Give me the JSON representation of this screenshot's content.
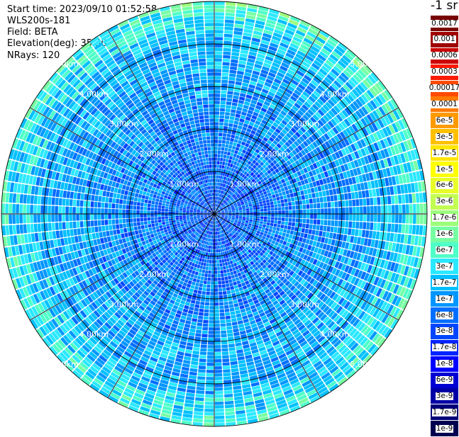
{
  "header": {
    "start_time": "Start time: 2023/09/10 01:52:58",
    "instrument": "WLS200s-181",
    "field": "Field: BETA",
    "elevation": "Elevation(deg): 35.30",
    "nrays": "NRays: 120"
  },
  "colorbar": {
    "unit_label": "-1 sr",
    "labels": [
      "0.0017",
      "0.001",
      "0.0006",
      "0.0003",
      "0.00017",
      "0.0001",
      "6e-5",
      "3e-5",
      "1.7e-5",
      "1e-5",
      "6e-6",
      "3e-6",
      "1.7e-6",
      "1e-6",
      "6e-7",
      "3e-7",
      "1.7e-7",
      "1e-7",
      "6e-8",
      "3e-8",
      "1.7e-8",
      "1e-8",
      "6e-9",
      "3e-9",
      "1.7e-9",
      "1e-9"
    ],
    "colors": [
      "#7a0000",
      "#a00000",
      "#cc0000",
      "#ff1a00",
      "#ff4a00",
      "#ff7a00",
      "#ff9a00",
      "#ffc000",
      "#ffe600",
      "#ffff00",
      "#e8ff2a",
      "#c2ff52",
      "#9cff7a",
      "#76ffa2",
      "#4fffc8",
      "#2ae8ff",
      "#00c0ff",
      "#0096ff",
      "#006eff",
      "#0046ff",
      "#0024ff",
      "#0000ff",
      "#0000d2",
      "#0000a6",
      "#00007a",
      "#000050"
    ]
  },
  "chart_data": {
    "type": "polar-ppi",
    "field": "BETA",
    "unit": "-1 sr",
    "elevation_deg": 35.3,
    "n_rays": 120,
    "range_rings_km": [
      1.0,
      2.0,
      3.0,
      4.0,
      5.0
    ],
    "ring_labels": [
      "1.00km",
      "2.00km",
      "3.00km",
      "4.00km",
      "5.00km"
    ],
    "max_range_km": 5.0,
    "spoke_angles_deg": [
      0,
      30,
      60,
      90,
      120,
      150,
      180,
      210,
      240,
      270,
      300,
      330
    ],
    "value_range": [
      1e-09,
      0.0017
    ],
    "typical_value_near": 3e-08,
    "typical_value_far": 1.7e-06
  }
}
